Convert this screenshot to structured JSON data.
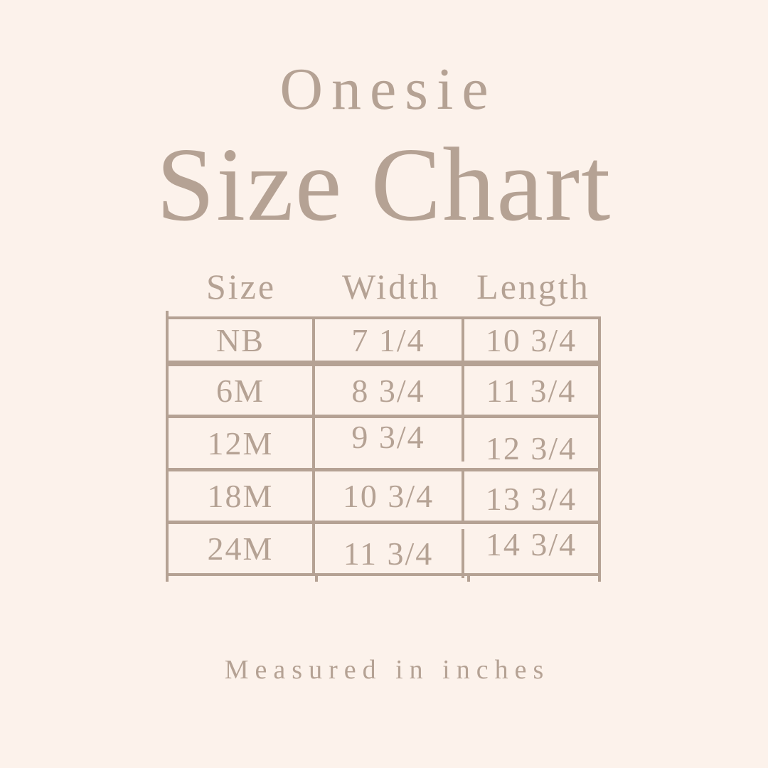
{
  "page": {
    "background": "#fcf2eb",
    "accent": "#b5a294"
  },
  "chart_data": {
    "type": "table",
    "subtitle": "Onesie",
    "title": "Size Chart",
    "columns": [
      "Size",
      "Width",
      "Length"
    ],
    "rows": [
      [
        "NB",
        "7 1/4",
        "10 3/4"
      ],
      [
        "6M",
        "8 3/4",
        "11 3/4"
      ],
      [
        "12M",
        "9 3/4",
        "12 3/4"
      ],
      [
        "18M",
        "10 3/4",
        "13 3/4"
      ],
      [
        "24M",
        "11 3/4",
        "14 3/4"
      ]
    ],
    "note": "Measured in inches",
    "units": "inches"
  }
}
